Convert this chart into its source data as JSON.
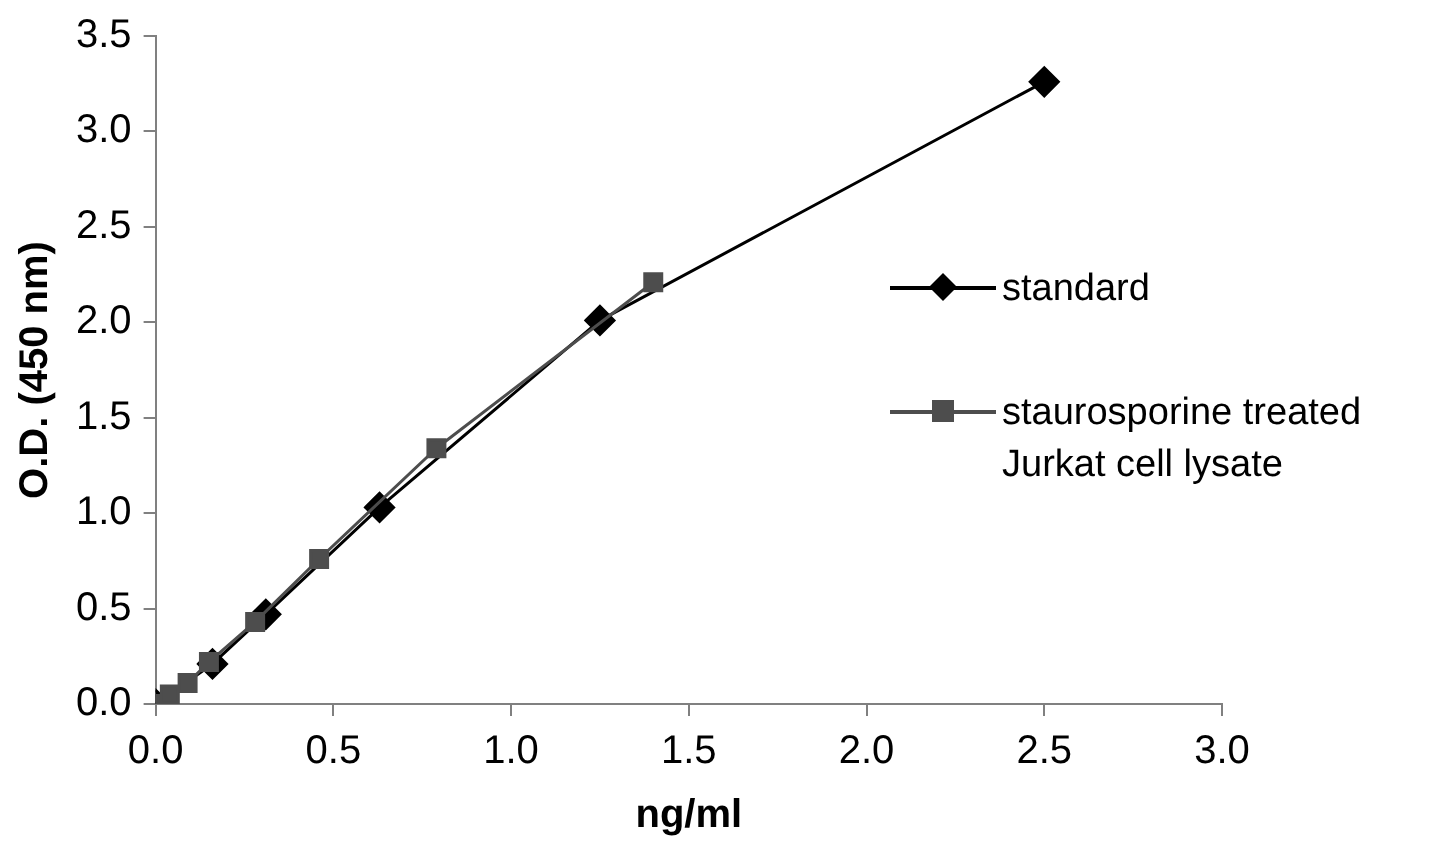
{
  "chart_data": {
    "type": "line",
    "xlabel": "ng/ml",
    "ylabel": "O.D. (450 nm)",
    "xlim": [
      0,
      3
    ],
    "xticks": [
      {
        "value": 0,
        "label": "0.0"
      },
      {
        "value": 0.5,
        "label": "0.5"
      },
      {
        "value": 1,
        "label": "1.0"
      },
      {
        "value": 1.5,
        "label": "1.5"
      },
      {
        "value": 2,
        "label": "2.0"
      },
      {
        "value": 2.5,
        "label": "2.5"
      },
      {
        "value": 3,
        "label": "3.0"
      }
    ],
    "ylim": [
      0,
      3.5
    ],
    "yticks": [
      {
        "value": 0,
        "label": "0.0"
      },
      {
        "value": 0.5,
        "label": "0.5"
      },
      {
        "value": 1,
        "label": "1.0"
      },
      {
        "value": 1.5,
        "label": "1.5"
      },
      {
        "value": 2,
        "label": "2.0"
      },
      {
        "value": 2.5,
        "label": "2.5"
      },
      {
        "value": 3,
        "label": "3.0"
      },
      {
        "value": 3.5,
        "label": "3.5"
      }
    ],
    "grid": false,
    "legend": "right",
    "line_style": "solid",
    "series": [
      {
        "name": "standard",
        "color": "#000000",
        "marker": "diamond",
        "x": [
          0,
          0.16,
          0.31,
          0.63,
          1.25,
          2.5
        ],
        "values": [
          0,
          0.21,
          0.47,
          1.03,
          2.01,
          3.26
        ]
      },
      {
        "name": "staurosporine treated\nJurkat cell lysate",
        "color": "#4d4d4d",
        "marker": "square",
        "x": [
          0,
          0.04,
          0.09,
          0.15,
          0.28,
          0.46,
          0.79,
          1.4
        ],
        "values": [
          0,
          0.05,
          0.11,
          0.22,
          0.43,
          0.76,
          1.34,
          2.21
        ]
      }
    ]
  }
}
